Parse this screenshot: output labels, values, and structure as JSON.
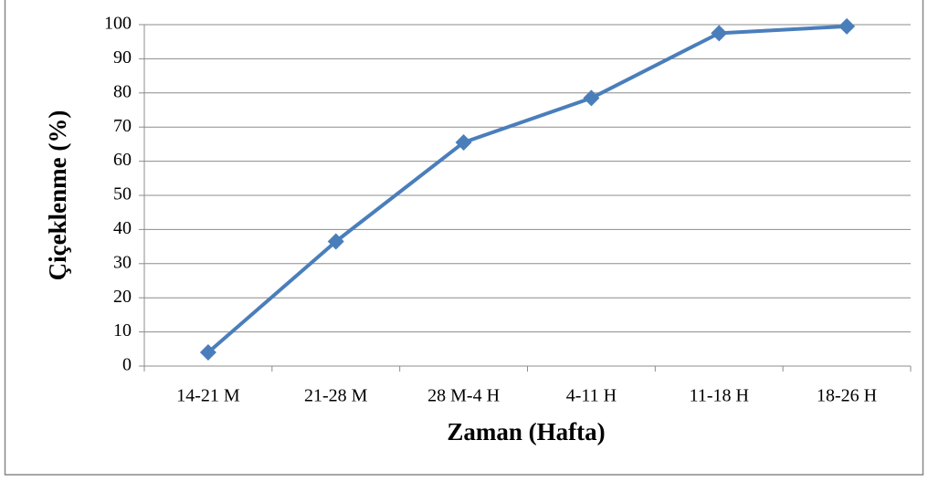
{
  "chart_data": {
    "type": "line",
    "categories": [
      "14-21 M",
      "21-28 M",
      "28 M-4 H",
      "4-11 H",
      "11-18 H",
      "18-26 H"
    ],
    "values": [
      4,
      36.5,
      65.5,
      78.5,
      97.5,
      99.5
    ],
    "color": "#4a7ebb",
    "ylabel": "Çiçeklenme (%)",
    "xlabel": "Zaman (Hafta)",
    "ylim": [
      0,
      100
    ],
    "yticks": [
      0,
      10,
      20,
      30,
      40,
      50,
      60,
      70,
      80,
      90,
      100
    ],
    "grid": true
  }
}
